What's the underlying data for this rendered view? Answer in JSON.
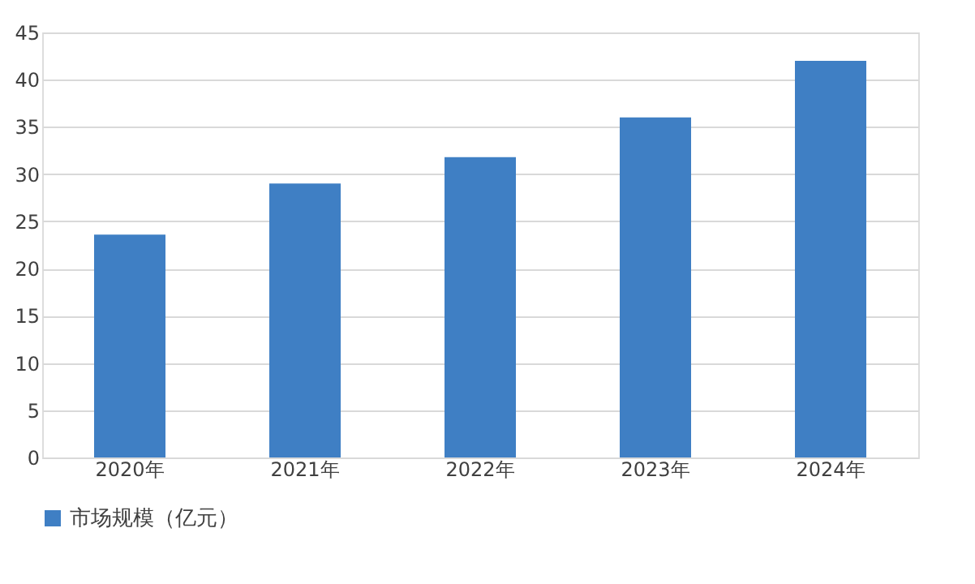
{
  "chart_data": {
    "type": "bar",
    "categories": [
      "2020年",
      "2021年",
      "2022年",
      "2023年",
      "2024年"
    ],
    "series": [
      {
        "name": "市场规模（亿元）",
        "color": "#3f7fc4",
        "values": [
          23.6,
          29,
          31.8,
          36,
          42
        ]
      }
    ],
    "ylim": [
      0,
      45
    ],
    "yticks": [
      0,
      5,
      10,
      15,
      20,
      25,
      30,
      35,
      40,
      45
    ],
    "grid": "y",
    "legend": "bottom"
  }
}
